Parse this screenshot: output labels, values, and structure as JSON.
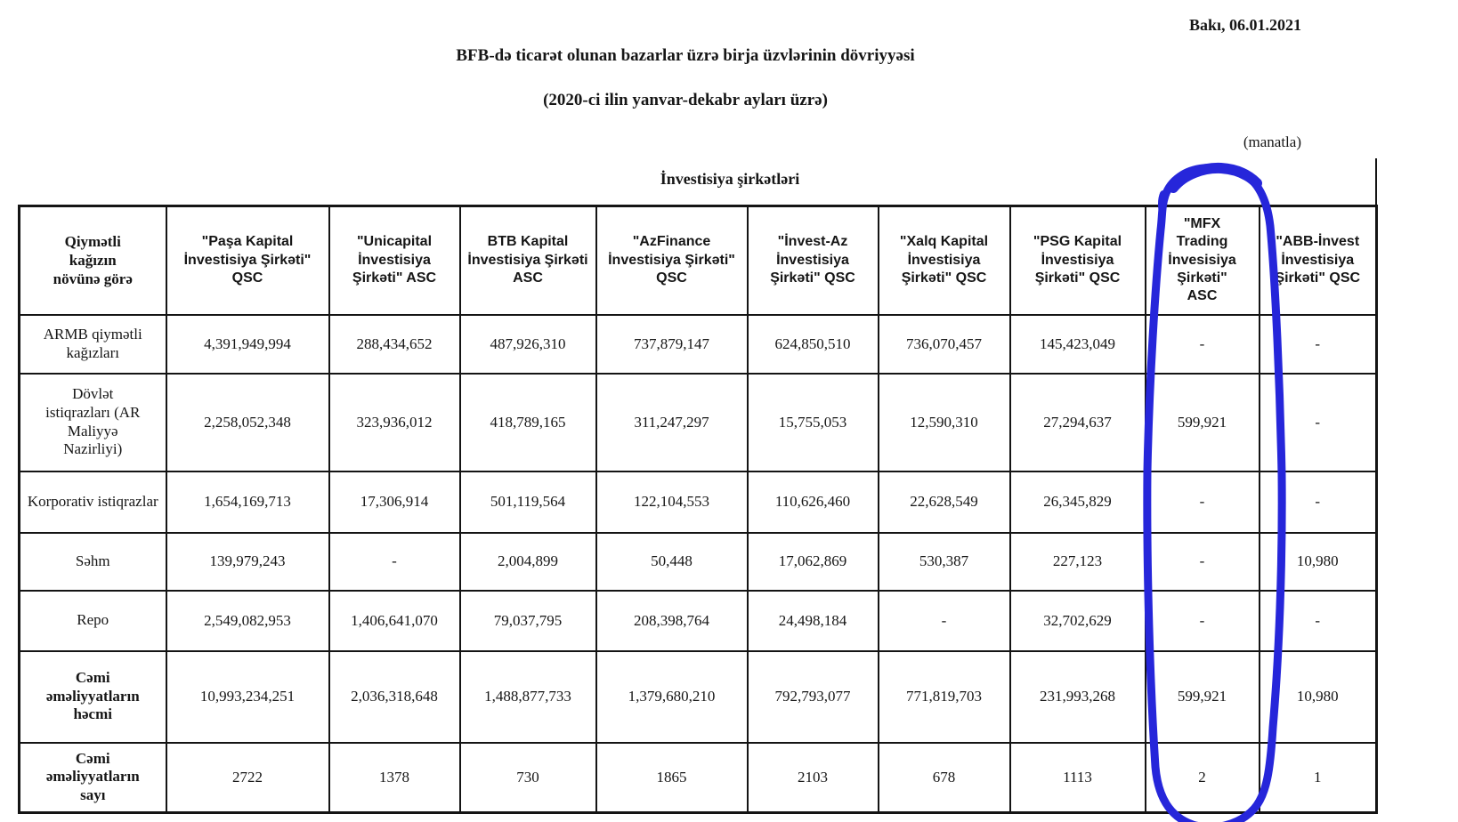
{
  "header": {
    "date": "Bakı, 06.01.2021",
    "title": "BFB-də ticarət olunan bazarlar üzrə birja üzvlərinin dövriyyəsi",
    "subtitle": "(2020-ci ilin yanvar-dekabr ayları üzrə)",
    "unit_note": "(manatla)"
  },
  "table": {
    "group_header": "İnvestisiya şirkətləri",
    "row_header_title": "Qiymətli\nkağızın\nnövünə görə",
    "columns": [
      "\"Paşa Kapital İnvestisiya Şirkəti\" QSC",
      "\"Unicapital İnvestisiya Şirkəti\" ASC",
      "BTB Kapital İnvestisiya Şirkəti ASC",
      "\"AzFinance İnvestisiya Şirkəti\" QSC",
      "\"İnvest-Az İnvestisiya Şirkəti\" QSC",
      "\"Xalq Kapital İnvestisiya Şirkəti\" QSC",
      "\"PSG Kapital İnvestisiya Şirkəti\" QSC",
      "\"MFX\nTrading\nİnvesisiya\nŞirkəti\"\nASC",
      "\"ABB-İnvest\nİnvestisiya\nŞirkəti\" QSC"
    ],
    "rows": [
      {
        "label": "ARMB qiymətli kağızları",
        "bold": false,
        "values": [
          "4,391,949,994",
          "288,434,652",
          "487,926,310",
          "737,879,147",
          "624,850,510",
          "736,070,457",
          "145,423,049",
          "-",
          "-"
        ]
      },
      {
        "label": "Dövlət\nistiqrazları (AR\nMaliyyə\nNazirliyi)",
        "bold": false,
        "values": [
          "2,258,052,348",
          "323,936,012",
          "418,789,165",
          "311,247,297",
          "15,755,053",
          "12,590,310",
          "27,294,637",
          "599,921",
          "-"
        ]
      },
      {
        "label": "Korporativ istiqrazlar",
        "bold": false,
        "values": [
          "1,654,169,713",
          "17,306,914",
          "501,119,564",
          "122,104,553",
          "110,626,460",
          "22,628,549",
          "26,345,829",
          "-",
          "-"
        ]
      },
      {
        "label": "Səhm",
        "bold": false,
        "values": [
          "139,979,243",
          "-",
          "2,004,899",
          "50,448",
          "17,062,869",
          "530,387",
          "227,123",
          "-",
          "10,980"
        ]
      },
      {
        "label": "Repo",
        "bold": false,
        "values": [
          "2,549,082,953",
          "1,406,641,070",
          "79,037,795",
          "208,398,764",
          "24,498,184",
          "-",
          "32,702,629",
          "-",
          "-"
        ]
      },
      {
        "label": "Cəmi\nəməliyyatların\nhəcmi",
        "bold": true,
        "values": [
          "10,993,234,251",
          "2,036,318,648",
          "1,488,877,733",
          "1,379,680,210",
          "792,793,077",
          "771,819,703",
          "231,993,268",
          "599,921",
          "10,980"
        ]
      },
      {
        "label": "Cəmi\nəməliyyatların\nsayı",
        "bold": true,
        "values": [
          "2722",
          "1378",
          "730",
          "1865",
          "2103",
          "678",
          "1113",
          "2",
          "1"
        ]
      }
    ]
  },
  "annotation": {
    "type": "hand-drawn-ellipse",
    "color": "#2626da",
    "highlights": "\"MFX Trading İnvesisiya Şirkəti\" ASC column"
  }
}
